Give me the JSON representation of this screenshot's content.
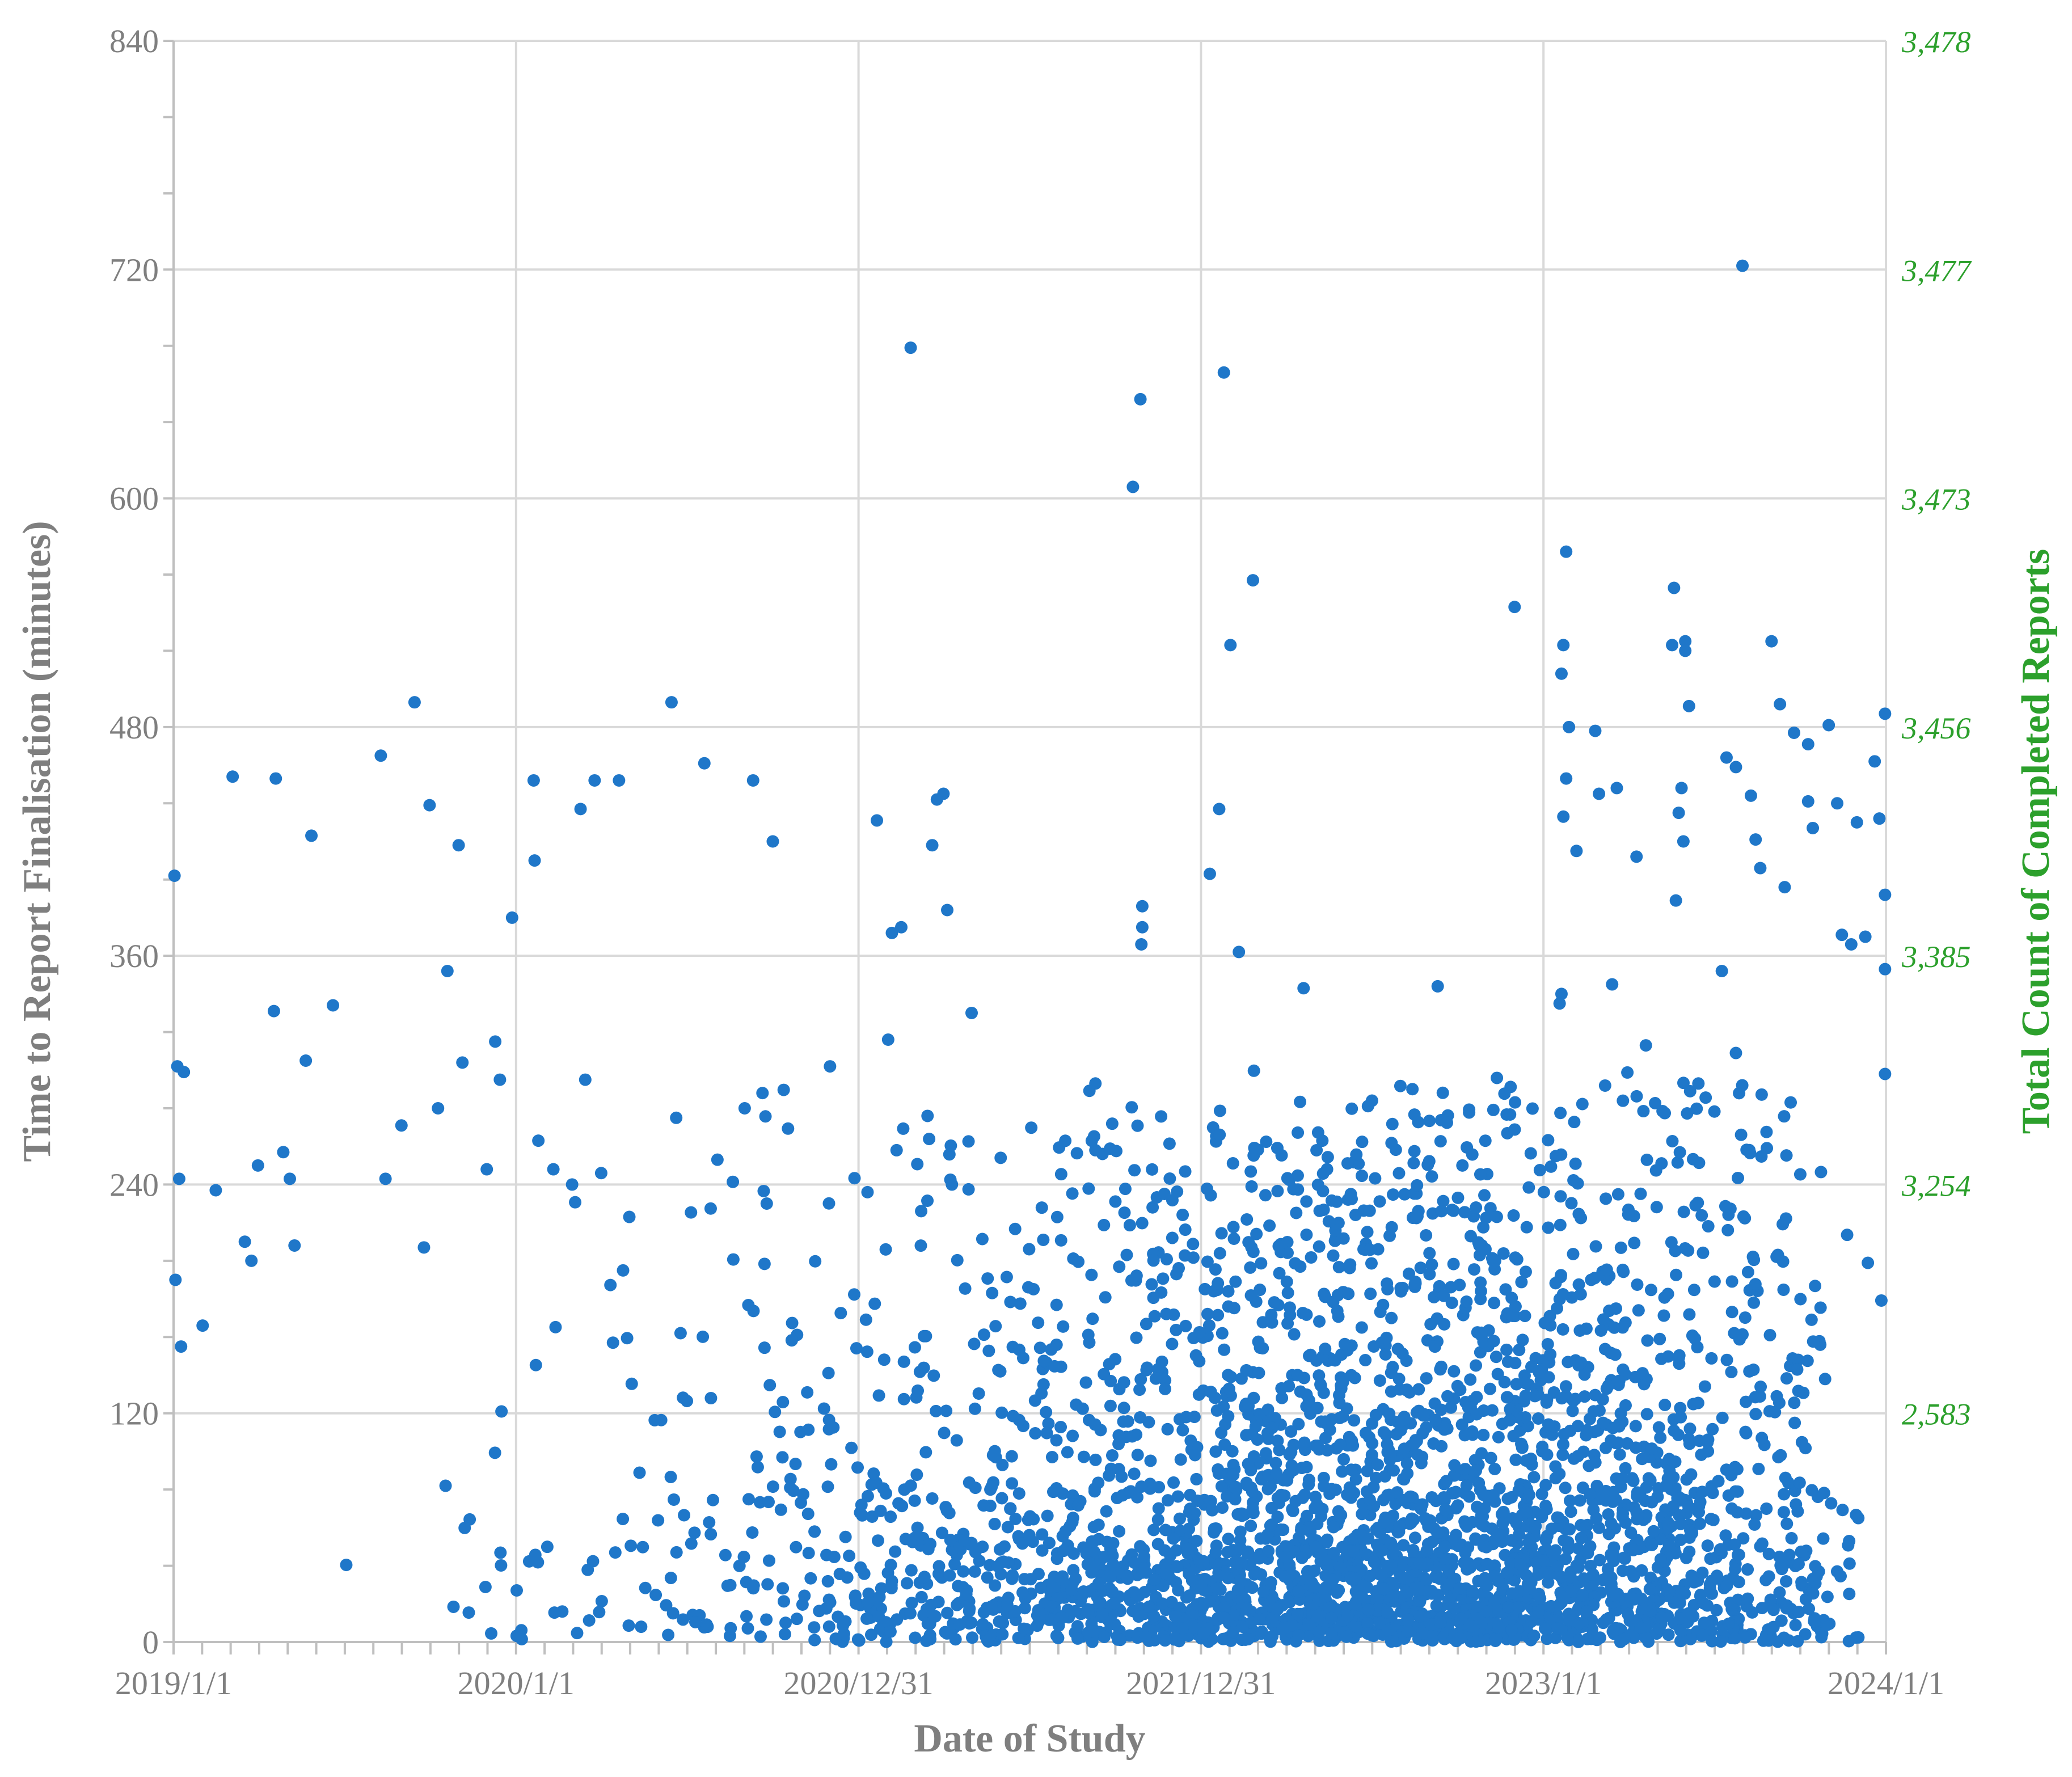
{
  "chart_data": {
    "type": "scatter",
    "xlabel": "Date of Study",
    "ylabel": "Time to Report Finalisation (minutes)",
    "y2label": "Total Count of Completed Reports",
    "ylim": [
      0,
      840
    ],
    "y_ticks": [
      0,
      120,
      240,
      360,
      480,
      600,
      720,
      840
    ],
    "y_tick_labels": [
      "0",
      "120",
      "240",
      "360",
      "480",
      "600",
      "720",
      "840"
    ],
    "y2_tick_labels": [
      "2,583",
      "3,254",
      "3,385",
      "3,456",
      "3,473",
      "3,477",
      "3,478"
    ],
    "x_tick_labels": [
      "2019/1/1",
      "2020/1/1",
      "2020/12/31",
      "2021/12/31",
      "2023/1/1",
      "2024/1/1"
    ],
    "xlim": [
      "2019-01-01",
      "2024-01-01"
    ],
    "grid": true,
    "series": [
      {
        "color": "#1f77c9",
        "points": [
          [
            "2019-01-02",
            402
          ],
          [
            "2019-01-05",
            302
          ],
          [
            "2019-01-12",
            299
          ],
          [
            "2019-01-07",
            243
          ],
          [
            "2019-02-15",
            237
          ],
          [
            "2019-01-03",
            190
          ],
          [
            "2019-01-09",
            155
          ],
          [
            "2019-02-01",
            166
          ],
          [
            "2019-03-05",
            454
          ],
          [
            "2019-04-20",
            453
          ],
          [
            "2019-05-28",
            423
          ],
          [
            "2019-05-22",
            305
          ],
          [
            "2019-04-18",
            331
          ],
          [
            "2019-06-20",
            334
          ],
          [
            "2019-03-25",
            200
          ],
          [
            "2019-04-01",
            250
          ],
          [
            "2019-04-28",
            257
          ],
          [
            "2019-05-10",
            208
          ],
          [
            "2019-03-18",
            210
          ],
          [
            "2019-05-05",
            243
          ],
          [
            "2019-08-10",
            465
          ],
          [
            "2019-09-15",
            493
          ],
          [
            "2019-10-01",
            439
          ],
          [
            "2019-11-01",
            418
          ],
          [
            "2019-10-20",
            352
          ],
          [
            "2019-11-05",
            304
          ],
          [
            "2019-12-10",
            315
          ],
          [
            "2019-12-28",
            380
          ],
          [
            "2019-08-15",
            243
          ],
          [
            "2019-09-01",
            271
          ],
          [
            "2019-09-25",
            207
          ],
          [
            "2019-10-10",
            280
          ],
          [
            "2019-12-01",
            248
          ],
          [
            "2019-12-15",
            295
          ],
          [
            "2020-01-20",
            452
          ],
          [
            "2020-01-21",
            410
          ],
          [
            "2020-03-10",
            437
          ],
          [
            "2020-03-25",
            452
          ],
          [
            "2020-04-20",
            452
          ],
          [
            "2020-06-15",
            493
          ],
          [
            "2020-07-20",
            461
          ],
          [
            "2020-01-25",
            263
          ],
          [
            "2020-02-10",
            248
          ],
          [
            "2020-03-01",
            240
          ],
          [
            "2020-03-15",
            295
          ],
          [
            "2020-04-01",
            246
          ],
          [
            "2020-05-01",
            223
          ],
          [
            "2020-06-20",
            275
          ],
          [
            "2020-09-10",
            452
          ],
          [
            "2020-10-01",
            420
          ],
          [
            "2020-12-01",
            302
          ],
          [
            "2020-09-01",
            280
          ],
          [
            "2020-09-20",
            288
          ],
          [
            "2021-01-10",
            236
          ],
          [
            "2021-01-20",
            431
          ],
          [
            "2021-02-01",
            316
          ],
          [
            "2021-02-05",
            372
          ],
          [
            "2021-02-15",
            375
          ],
          [
            "2021-02-25",
            679
          ],
          [
            "2021-03-20",
            418
          ],
          [
            "2021-04-01",
            445
          ],
          [
            "2021-04-05",
            384
          ],
          [
            "2021-03-25",
            442
          ],
          [
            "2021-04-10",
            240
          ],
          [
            "2021-05-01",
            330
          ],
          [
            "2021-03-15",
            276
          ],
          [
            "2021-02-10",
            258
          ],
          [
            "2021-06-01",
            254
          ],
          [
            "2021-09-10",
            293
          ],
          [
            "2021-09-10",
            258
          ],
          [
            "2021-10-20",
            606
          ],
          [
            "2021-10-28",
            652
          ],
          [
            "2021-10-30",
            386
          ],
          [
            "2021-10-30",
            375
          ],
          [
            "2021-10-29",
            366
          ],
          [
            "2021-11-10",
            228
          ],
          [
            "2021-12-01",
            212
          ],
          [
            "2022-01-25",
            666
          ],
          [
            "2022-02-25",
            557
          ],
          [
            "2022-02-01",
            523
          ],
          [
            "2022-01-20",
            437
          ],
          [
            "2022-01-10",
            403
          ],
          [
            "2022-02-10",
            362
          ],
          [
            "2022-04-20",
            343
          ],
          [
            "2022-05-10",
            263
          ],
          [
            "2022-05-15",
            248
          ],
          [
            "2022-09-10",
            344
          ],
          [
            "2022-12-01",
            543
          ],
          [
            "2023-01-25",
            572
          ],
          [
            "2023-01-22",
            523
          ],
          [
            "2023-01-20",
            508
          ],
          [
            "2023-01-28",
            480
          ],
          [
            "2023-01-25",
            453
          ],
          [
            "2023-01-22",
            433
          ],
          [
            "2023-02-05",
            415
          ],
          [
            "2023-02-25",
            478
          ],
          [
            "2023-03-01",
            445
          ],
          [
            "2023-03-20",
            448
          ],
          [
            "2023-04-10",
            412
          ],
          [
            "2023-03-15",
            345
          ],
          [
            "2023-01-20",
            340
          ],
          [
            "2023-01-18",
            335
          ],
          [
            "2023-04-20",
            313
          ],
          [
            "2023-05-20",
            553
          ],
          [
            "2023-05-18",
            523
          ],
          [
            "2023-06-01",
            525
          ],
          [
            "2023-06-01",
            520
          ],
          [
            "2023-06-05",
            491
          ],
          [
            "2023-05-25",
            435
          ],
          [
            "2023-05-22",
            389
          ],
          [
            "2023-05-30",
            420
          ],
          [
            "2023-05-28",
            448
          ],
          [
            "2023-07-15",
            464
          ],
          [
            "2023-07-25",
            459
          ],
          [
            "2023-08-01",
            722
          ],
          [
            "2023-09-01",
            525
          ],
          [
            "2023-08-10",
            444
          ],
          [
            "2023-08-15",
            421
          ],
          [
            "2023-09-10",
            492
          ],
          [
            "2023-09-25",
            477
          ],
          [
            "2023-10-10",
            471
          ],
          [
            "2023-10-10",
            441
          ],
          [
            "2023-10-15",
            427
          ],
          [
            "2023-11-10",
            440
          ],
          [
            "2023-11-01",
            481
          ],
          [
            "2023-12-01",
            430
          ],
          [
            "2023-12-20",
            462
          ],
          [
            "2023-12-25",
            432
          ],
          [
            "2023-12-31",
            487
          ],
          [
            "2023-12-31",
            392
          ],
          [
            "2023-12-31",
            353
          ],
          [
            "2023-12-31",
            298
          ],
          [
            "2023-11-15",
            371
          ],
          [
            "2023-11-25",
            366
          ],
          [
            "2023-12-10",
            370
          ],
          [
            "2023-09-15",
            396
          ],
          [
            "2023-08-20",
            406
          ],
          [
            "2023-07-10",
            352
          ],
          [
            "2023-06-15",
            293
          ],
          [
            "2023-07-25",
            309
          ]
        ]
      }
    ]
  }
}
